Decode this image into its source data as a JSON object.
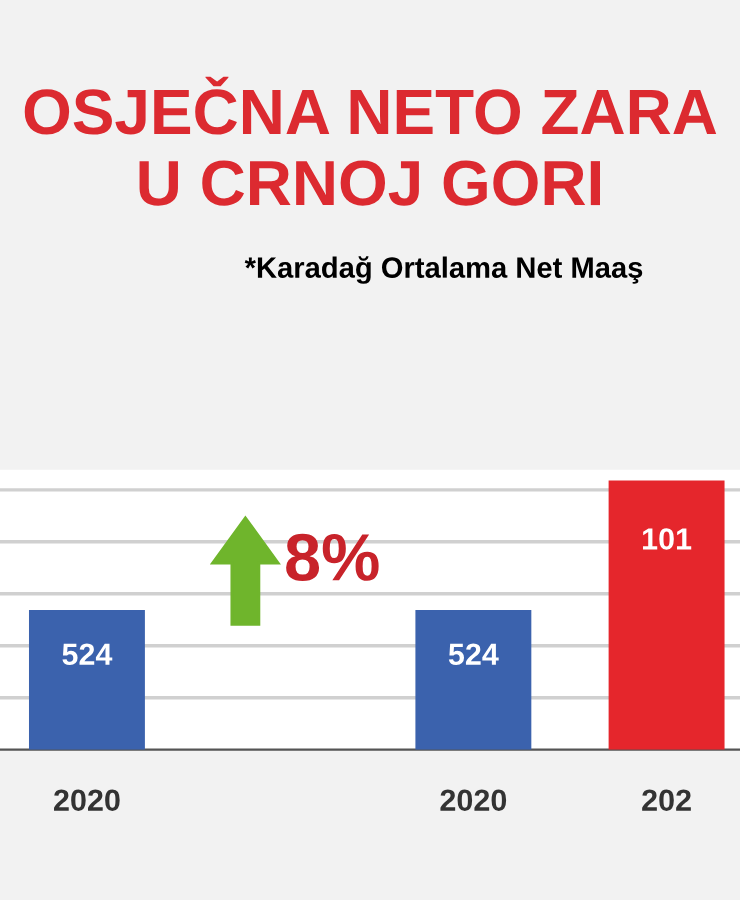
{
  "chart_data": {
    "type": "bar",
    "title": "OSJEČNA NETO ZARA\nU CRNOJ GORI",
    "subtitle": "*Karadağ Ortalama Net Maaş",
    "categories": [
      "2020",
      null,
      "2020",
      "202"
    ],
    "values": [
      524,
      null,
      524,
      1010
    ],
    "colors": [
      "#3b62ad",
      "#3b62ad",
      "#3b62ad",
      "#e5262c"
    ],
    "value_labels": [
      "524",
      null,
      "524",
      null
    ],
    "annotations": [
      "8%",
      {
        "text": "101",
        "x": "202",
        "y": 1010
      }
    ],
    "ylim": [
      0,
      1050
    ],
    "yticks": [
      {
        "value": 195,
        "label": null
      },
      {
        "value": 390,
        "label": null
      },
      {
        "value": 585,
        "label": null
      },
      {
        "value": 780,
        "label": null
      },
      {
        "value": 975,
        "label": null
      }
    ],
    "tick_labels": "x",
    "grid": "y",
    "legend": false
  }
}
